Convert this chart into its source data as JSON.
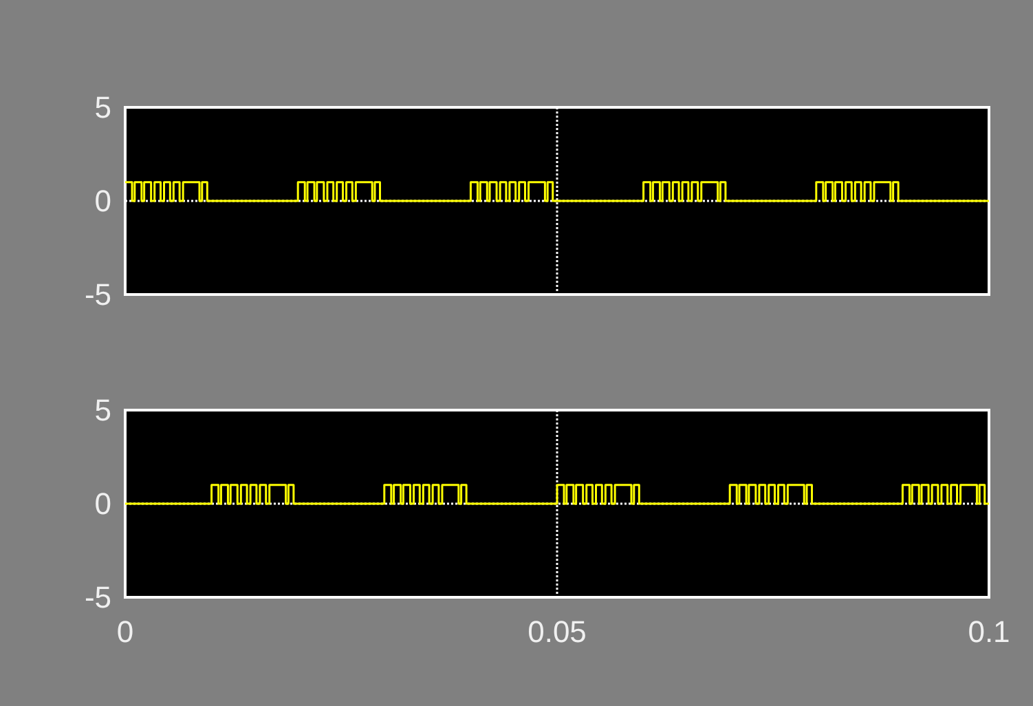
{
  "chart_data": [
    {
      "type": "step",
      "xlim": [
        0,
        0.1
      ],
      "xticks": [
        0,
        0.05,
        0.1
      ],
      "ylim": [
        -5,
        5
      ],
      "yticks": [
        -5,
        0,
        5
      ],
      "grid": true,
      "tick_labels": "y",
      "series": [
        {
          "color": "#ffff00",
          "x": [
            0,
            0.0008,
            0.0011,
            0.0019,
            0.0022,
            0.003,
            0.0034,
            0.0041,
            0.0045,
            0.0052,
            0.0056,
            0.0063,
            0.0067,
            0.0086,
            0.0089,
            0.0095,
            0.02,
            0.0208,
            0.0211,
            0.0219,
            0.0222,
            0.023,
            0.0234,
            0.0241,
            0.0245,
            0.0252,
            0.0256,
            0.0263,
            0.0267,
            0.0286,
            0.0289,
            0.0295,
            0.04,
            0.0408,
            0.0411,
            0.0419,
            0.0422,
            0.043,
            0.0434,
            0.0441,
            0.0445,
            0.0452,
            0.0456,
            0.0463,
            0.0467,
            0.0486,
            0.0489,
            0.0495,
            0.06,
            0.0608,
            0.0611,
            0.0619,
            0.0622,
            0.063,
            0.0634,
            0.0641,
            0.0645,
            0.0652,
            0.0656,
            0.0663,
            0.0667,
            0.0686,
            0.0689,
            0.0695,
            0.08,
            0.0808,
            0.0811,
            0.0819,
            0.0822,
            0.083,
            0.0834,
            0.0841,
            0.0845,
            0.0852,
            0.0856,
            0.0863,
            0.0867,
            0.0886,
            0.0889,
            0.0895,
            0.1
          ],
          "values": [
            1,
            0,
            1,
            0,
            1,
            0,
            1,
            0,
            1,
            0,
            1,
            0,
            1,
            0,
            1,
            0,
            1,
            0,
            1,
            0,
            1,
            0,
            1,
            0,
            1,
            0,
            1,
            0,
            1,
            0,
            1,
            0,
            1,
            0,
            1,
            0,
            1,
            0,
            1,
            0,
            1,
            0,
            1,
            0,
            1,
            0,
            1,
            0,
            1,
            0,
            1,
            0,
            1,
            0,
            1,
            0,
            1,
            0,
            1,
            0,
            1,
            0,
            1,
            0,
            1,
            0,
            1,
            0,
            1,
            0,
            1,
            0,
            1,
            0,
            1,
            0,
            1,
            0,
            1,
            0,
            0
          ]
        }
      ]
    },
    {
      "type": "step",
      "xlim": [
        0,
        0.1
      ],
      "xticks": [
        0,
        0.05,
        0.1
      ],
      "ylim": [
        -5,
        5
      ],
      "yticks": [
        -5,
        0,
        5
      ],
      "grid": true,
      "series": [
        {
          "color": "#ffff00",
          "x": [
            0,
            0.01,
            0.0108,
            0.0111,
            0.0119,
            0.0122,
            0.013,
            0.0134,
            0.0141,
            0.0145,
            0.0152,
            0.0156,
            0.0163,
            0.0167,
            0.0186,
            0.0189,
            0.0195,
            0.03,
            0.0308,
            0.0311,
            0.0319,
            0.0322,
            0.033,
            0.0334,
            0.0341,
            0.0345,
            0.0352,
            0.0356,
            0.0363,
            0.0367,
            0.0386,
            0.0389,
            0.0395,
            0.05,
            0.0508,
            0.0511,
            0.0519,
            0.0522,
            0.053,
            0.0534,
            0.0541,
            0.0545,
            0.0552,
            0.0556,
            0.0563,
            0.0567,
            0.0586,
            0.0589,
            0.0595,
            0.07,
            0.0708,
            0.0711,
            0.0719,
            0.0722,
            0.073,
            0.0734,
            0.0741,
            0.0745,
            0.0752,
            0.0756,
            0.0763,
            0.0767,
            0.0786,
            0.0789,
            0.0795,
            0.09,
            0.0908,
            0.0911,
            0.0919,
            0.0922,
            0.093,
            0.0934,
            0.0941,
            0.0945,
            0.0952,
            0.0956,
            0.0963,
            0.0967,
            0.0986,
            0.0989,
            0.0995,
            0.1
          ],
          "values": [
            0,
            1,
            0,
            1,
            0,
            1,
            0,
            1,
            0,
            1,
            0,
            1,
            0,
            1,
            0,
            1,
            0,
            1,
            0,
            1,
            0,
            1,
            0,
            1,
            0,
            1,
            0,
            1,
            0,
            1,
            0,
            1,
            0,
            1,
            0,
            1,
            0,
            1,
            0,
            1,
            0,
            1,
            0,
            1,
            0,
            1,
            0,
            1,
            0,
            1,
            0,
            1,
            0,
            1,
            0,
            1,
            0,
            1,
            0,
            1,
            0,
            1,
            0,
            1,
            0,
            1,
            0,
            1,
            0,
            1,
            0,
            1,
            0,
            1,
            0,
            1,
            0,
            1,
            0,
            1,
            0,
            0
          ]
        }
      ]
    }
  ]
}
